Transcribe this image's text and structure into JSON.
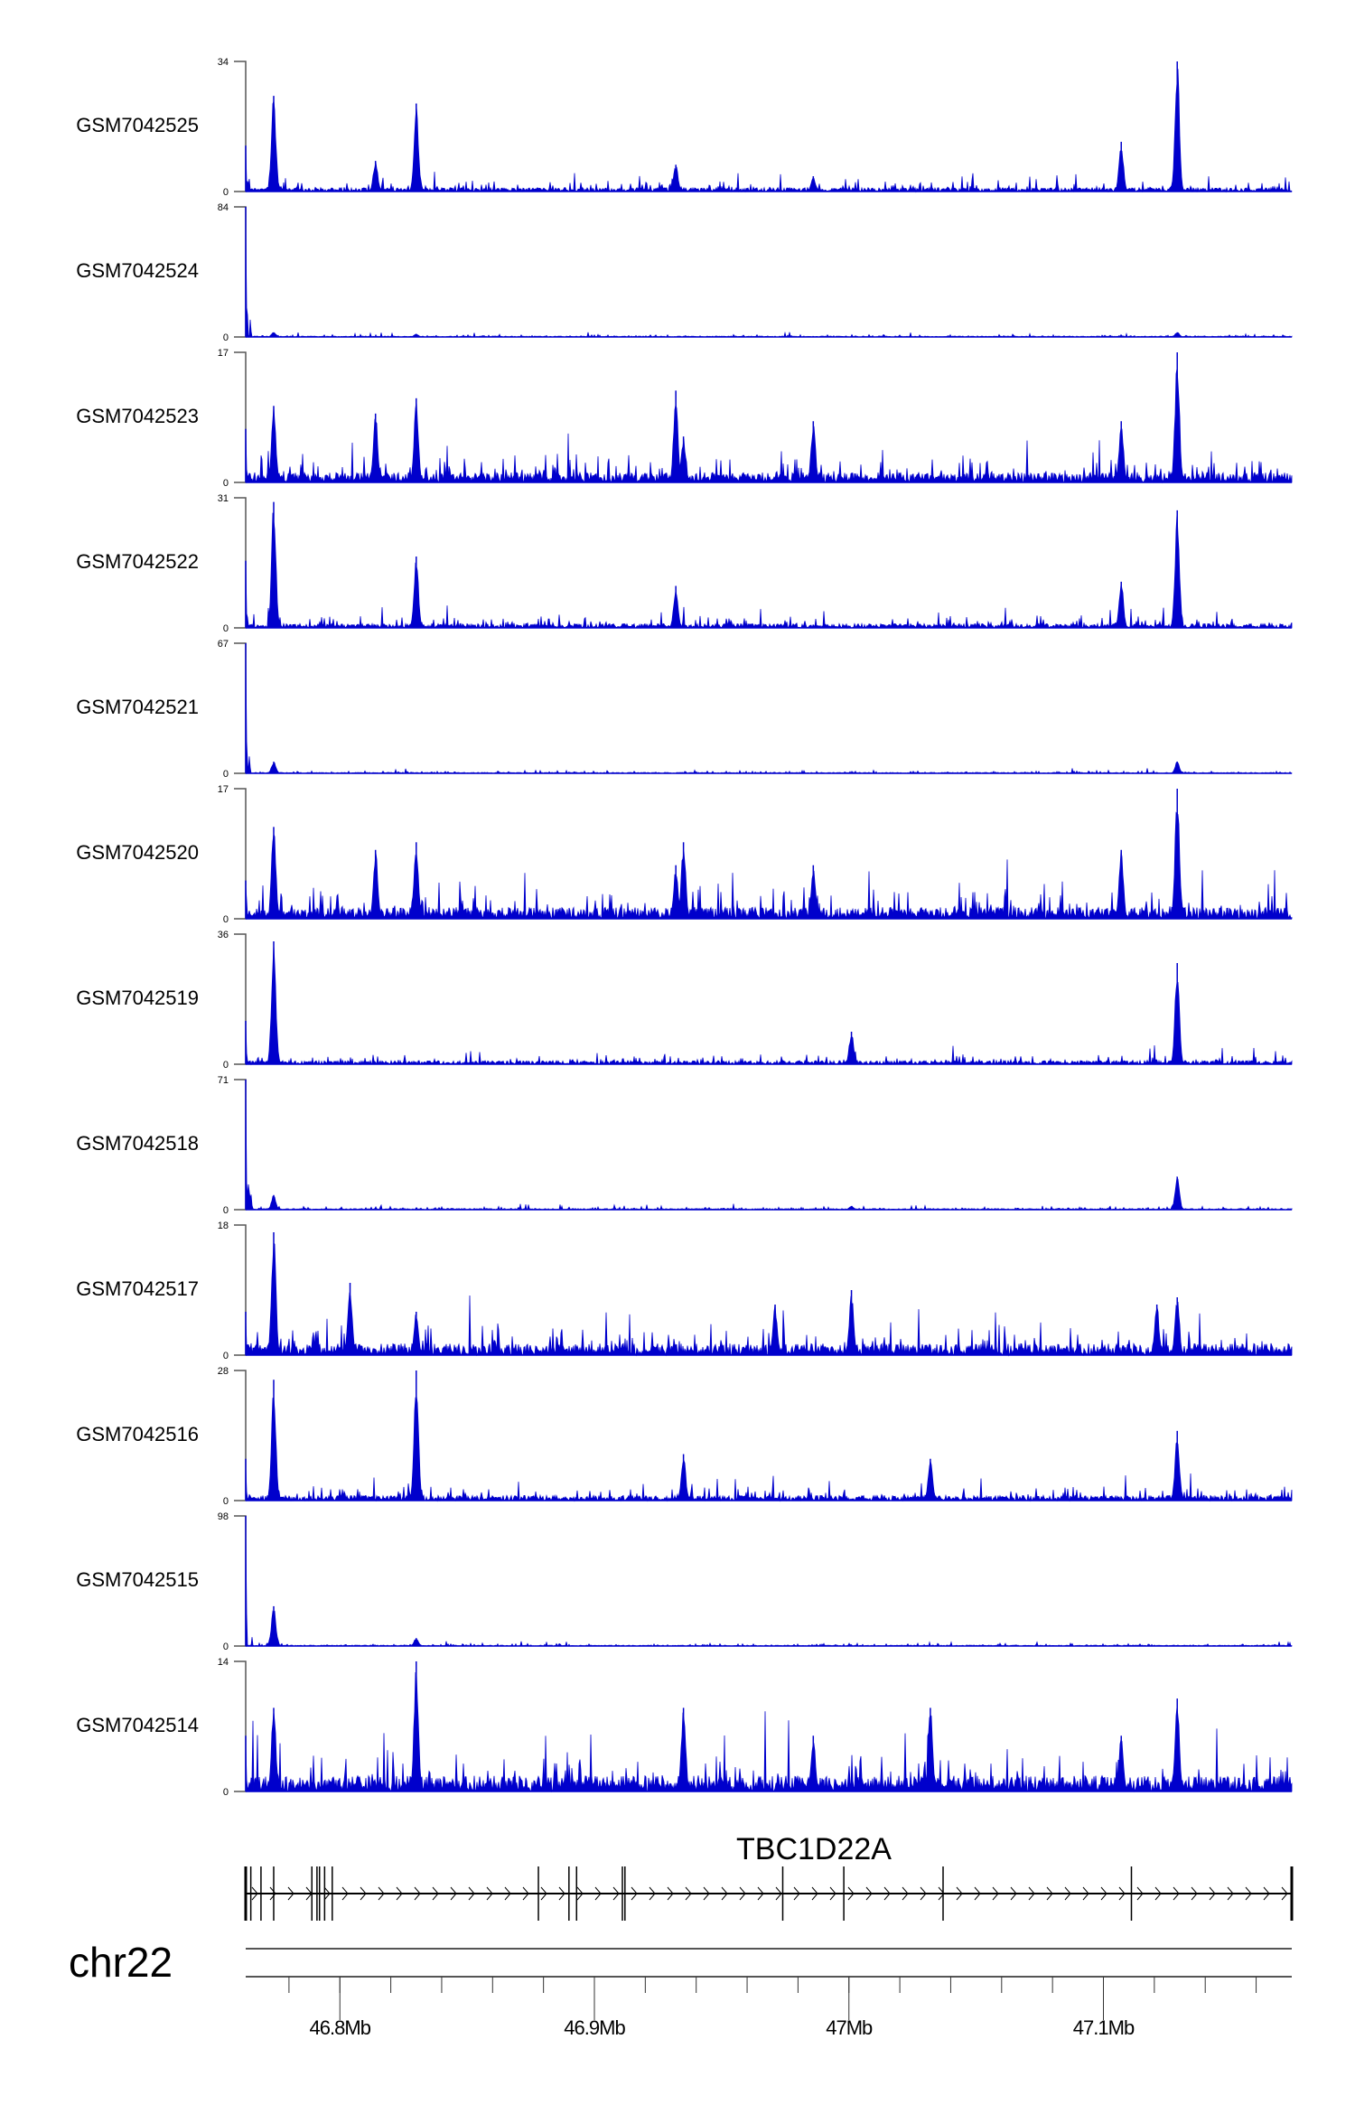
{
  "chart_data": {
    "type": "area",
    "title": "",
    "color": "#0000CC",
    "chromosome": "chr22",
    "xlim_mb": [
      46.763,
      47.174
    ],
    "x_ticks": [
      {
        "mb": 46.8,
        "label": "46.8Mb"
      },
      {
        "mb": 46.9,
        "label": "46.9Mb"
      },
      {
        "mb": 47.0,
        "label": "47Mb"
      },
      {
        "mb": 47.1,
        "label": "47.1Mb"
      }
    ],
    "gene": {
      "name": "TBC1D22A",
      "strand": "+",
      "exons_mb": [
        46.763,
        46.765,
        46.769,
        46.774,
        46.789,
        46.791,
        46.792,
        46.794,
        46.797,
        46.878,
        46.89,
        46.893,
        46.911,
        46.912,
        46.974,
        46.998,
        47.037,
        47.111,
        47.174
      ]
    },
    "tracks": [
      {
        "name": "GSM7042525",
        "ymin": 0,
        "ymax": 34,
        "noise": 2.0,
        "peaks": [
          [
            46.763,
            12
          ],
          [
            46.774,
            25
          ],
          [
            46.814,
            8
          ],
          [
            46.83,
            23
          ],
          [
            46.932,
            7
          ],
          [
            46.986,
            4
          ],
          [
            47.107,
            13
          ],
          [
            47.129,
            34
          ]
        ]
      },
      {
        "name": "GSM7042524",
        "ymin": 0,
        "ymax": 84,
        "noise": 1.2,
        "peaks": [
          [
            46.763,
            84
          ],
          [
            46.774,
            3
          ],
          [
            46.83,
            2
          ],
          [
            47.129,
            3
          ]
        ]
      },
      {
        "name": "GSM7042523",
        "ymin": 0,
        "ymax": 17,
        "noise": 2.6,
        "peaks": [
          [
            46.763,
            7
          ],
          [
            46.774,
            10
          ],
          [
            46.814,
            9
          ],
          [
            46.83,
            11
          ],
          [
            46.932,
            12
          ],
          [
            46.935,
            6
          ],
          [
            46.986,
            8
          ],
          [
            47.107,
            8
          ],
          [
            47.129,
            17
          ]
        ]
      },
      {
        "name": "GSM7042522",
        "ymin": 0,
        "ymax": 31,
        "noise": 2.0,
        "peaks": [
          [
            46.763,
            16
          ],
          [
            46.774,
            30
          ],
          [
            46.83,
            17
          ],
          [
            46.932,
            10
          ],
          [
            47.107,
            11
          ],
          [
            47.129,
            28
          ]
        ]
      },
      {
        "name": "GSM7042521",
        "ymin": 0,
        "ymax": 67,
        "noise": 1.0,
        "peaks": [
          [
            46.763,
            67
          ],
          [
            46.774,
            6
          ],
          [
            47.129,
            6
          ]
        ]
      },
      {
        "name": "GSM7042520",
        "ymin": 0,
        "ymax": 17,
        "noise": 3.0,
        "peaks": [
          [
            46.763,
            5
          ],
          [
            46.774,
            12
          ],
          [
            46.814,
            9
          ],
          [
            46.83,
            10
          ],
          [
            46.932,
            7
          ],
          [
            46.935,
            10
          ],
          [
            46.986,
            7
          ],
          [
            47.107,
            9
          ],
          [
            47.129,
            17
          ]
        ]
      },
      {
        "name": "GSM7042519",
        "ymin": 0,
        "ymax": 36,
        "noise": 2.0,
        "peaks": [
          [
            46.763,
            12
          ],
          [
            46.774,
            34
          ],
          [
            47.001,
            9
          ],
          [
            47.129,
            28
          ]
        ]
      },
      {
        "name": "GSM7042518",
        "ymin": 0,
        "ymax": 71,
        "noise": 1.3,
        "peaks": [
          [
            46.763,
            71
          ],
          [
            46.774,
            8
          ],
          [
            47.001,
            2
          ],
          [
            47.129,
            18
          ]
        ]
      },
      {
        "name": "GSM7042517",
        "ymin": 0,
        "ymax": 18,
        "noise": 3.2,
        "peaks": [
          [
            46.763,
            6
          ],
          [
            46.774,
            17
          ],
          [
            46.804,
            10
          ],
          [
            46.83,
            6
          ],
          [
            46.971,
            7
          ],
          [
            47.001,
            9
          ],
          [
            47.121,
            7
          ],
          [
            47.129,
            8
          ]
        ]
      },
      {
        "name": "GSM7042516",
        "ymin": 0,
        "ymax": 28,
        "noise": 2.2,
        "peaks": [
          [
            46.763,
            9
          ],
          [
            46.774,
            26
          ],
          [
            46.83,
            28
          ],
          [
            46.935,
            10
          ],
          [
            47.032,
            9
          ],
          [
            47.129,
            15
          ]
        ]
      },
      {
        "name": "GSM7042515",
        "ymin": 0,
        "ymax": 98,
        "noise": 1.4,
        "peaks": [
          [
            46.763,
            98
          ],
          [
            46.774,
            30
          ],
          [
            46.83,
            6
          ]
        ]
      },
      {
        "name": "GSM7042514",
        "ymin": 0,
        "ymax": 14,
        "noise": 3.4,
        "peaks": [
          [
            46.763,
            6
          ],
          [
            46.774,
            9
          ],
          [
            46.83,
            14
          ],
          [
            46.935,
            9
          ],
          [
            46.986,
            6
          ],
          [
            47.032,
            9
          ],
          [
            47.107,
            6
          ],
          [
            47.129,
            10
          ]
        ]
      }
    ]
  }
}
